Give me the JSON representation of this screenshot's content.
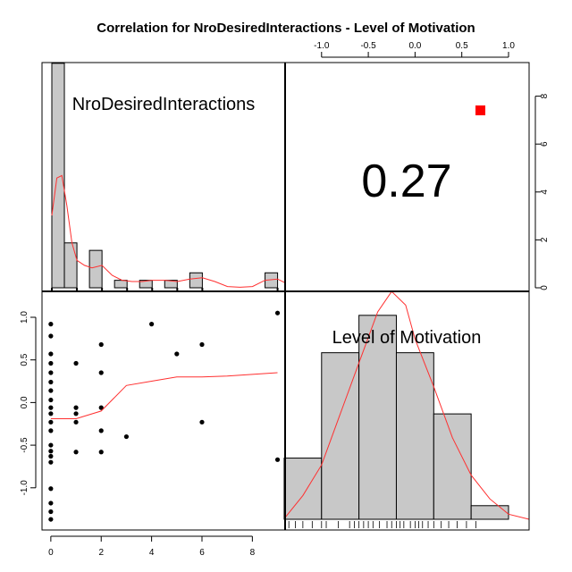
{
  "chart_data": {
    "type": "scatter",
    "title": "Correlation  for NroDesiredInteractions - Level of Motivation",
    "variables": [
      "NroDesiredInteractions",
      "Level of Motivation"
    ],
    "correlation_label": "0.27",
    "colors": {
      "bar_fill": "#c8c8c8",
      "density": "#ff3030",
      "marker": "#ff0000",
      "points": "#000000"
    },
    "hist_nro": {
      "xlim": [
        0,
        9.3
      ],
      "ylim": [
        0,
        8.6
      ],
      "bins": [
        {
          "x0": 0.0,
          "x1": 0.5,
          "h": 9.0
        },
        {
          "x0": 0.5,
          "x1": 1.0,
          "h": 1.8
        },
        {
          "x0": 1.0,
          "x1": 1.5,
          "h": 0.0
        },
        {
          "x0": 1.5,
          "x1": 2.0,
          "h": 1.5
        },
        {
          "x0": 2.0,
          "x1": 2.5,
          "h": 0.0
        },
        {
          "x0": 2.5,
          "x1": 3.0,
          "h": 0.3
        },
        {
          "x0": 3.0,
          "x1": 3.5,
          "h": 0.0
        },
        {
          "x0": 3.5,
          "x1": 4.0,
          "h": 0.3
        },
        {
          "x0": 4.0,
          "x1": 4.5,
          "h": 0.0
        },
        {
          "x0": 4.5,
          "x1": 5.0,
          "h": 0.3
        },
        {
          "x0": 5.0,
          "x1": 5.5,
          "h": 0.0
        },
        {
          "x0": 5.5,
          "x1": 6.0,
          "h": 0.6
        },
        {
          "x0": 6.0,
          "x1": 6.5,
          "h": 0.0
        },
        {
          "x0": 6.5,
          "x1": 7.0,
          "h": 0.0
        },
        {
          "x0": 7.0,
          "x1": 7.5,
          "h": 0.0
        },
        {
          "x0": 7.5,
          "x1": 8.0,
          "h": 0.0
        },
        {
          "x0": 8.0,
          "x1": 8.5,
          "h": 0.0
        },
        {
          "x0": 8.5,
          "x1": 9.0,
          "h": 0.6
        }
      ],
      "density": [
        [
          0.0,
          2.9
        ],
        [
          0.2,
          4.4
        ],
        [
          0.4,
          4.5
        ],
        [
          0.6,
          3.3
        ],
        [
          0.8,
          1.8
        ],
        [
          1.0,
          1.1
        ],
        [
          1.3,
          0.9
        ],
        [
          1.6,
          0.8
        ],
        [
          2.0,
          0.9
        ],
        [
          2.4,
          0.5
        ],
        [
          2.8,
          0.3
        ],
        [
          3.2,
          0.25
        ],
        [
          3.6,
          0.25
        ],
        [
          4.0,
          0.3
        ],
        [
          4.5,
          0.3
        ],
        [
          5.0,
          0.25
        ],
        [
          5.5,
          0.35
        ],
        [
          6.0,
          0.4
        ],
        [
          6.5,
          0.25
        ],
        [
          7.0,
          0.05
        ],
        [
          7.5,
          0.02
        ],
        [
          8.0,
          0.05
        ],
        [
          8.5,
          0.3
        ],
        [
          9.0,
          0.35
        ],
        [
          9.3,
          0.2
        ]
      ],
      "rug": [
        0,
        1,
        2,
        3,
        4,
        5,
        6,
        9
      ]
    },
    "hist_motivation": {
      "xlim": [
        -1.39,
        1.22
      ],
      "ylim": [
        0,
        6.6
      ],
      "bins": [
        {
          "x0": -1.4,
          "x1": -1.0,
          "h": 1.8
        },
        {
          "x0": -1.0,
          "x1": -0.6,
          "h": 4.9
        },
        {
          "x0": -0.6,
          "x1": -0.2,
          "h": 6.0
        },
        {
          "x0": -0.2,
          "x1": 0.2,
          "h": 4.9
        },
        {
          "x0": 0.2,
          "x1": 0.6,
          "h": 3.1
        },
        {
          "x0": 0.6,
          "x1": 1.0,
          "h": 0.4
        }
      ],
      "density": [
        [
          -1.39,
          0.05
        ],
        [
          -1.2,
          0.7
        ],
        [
          -1.0,
          1.6
        ],
        [
          -0.8,
          3.1
        ],
        [
          -0.6,
          4.6
        ],
        [
          -0.4,
          6.1
        ],
        [
          -0.25,
          6.7
        ],
        [
          -0.1,
          6.3
        ],
        [
          0.0,
          5.3
        ],
        [
          0.2,
          3.9
        ],
        [
          0.4,
          2.4
        ],
        [
          0.6,
          1.3
        ],
        [
          0.8,
          0.6
        ],
        [
          1.0,
          0.15
        ],
        [
          1.22,
          0.0
        ]
      ],
      "rug": [
        -1.35,
        -1.28,
        -1.2,
        -1.1,
        -1.0,
        -0.95,
        -0.82,
        -0.7,
        -0.65,
        -0.6,
        -0.55,
        -0.5,
        -0.45,
        -0.38,
        -0.3,
        -0.25,
        -0.2,
        -0.16,
        -0.12,
        -0.05,
        0.0,
        0.04,
        0.08,
        0.14,
        0.2,
        0.28,
        0.36,
        0.45,
        0.55,
        0.65
      ]
    },
    "scatter": {
      "xlabel": "NroDesiredInteractions",
      "ylabel": "Level of Motivation",
      "xlim": [
        -0.35,
        9.3
      ],
      "ylim": [
        -1.39,
        1.22
      ],
      "points": [
        [
          0,
          0.92
        ],
        [
          0,
          0.78
        ],
        [
          0,
          0.57
        ],
        [
          0,
          0.46
        ],
        [
          0,
          0.35
        ],
        [
          0,
          0.24
        ],
        [
          0,
          0.14
        ],
        [
          0,
          0.03
        ],
        [
          0,
          -0.06
        ],
        [
          0,
          -0.13
        ],
        [
          0,
          -0.23
        ],
        [
          0,
          -0.33
        ],
        [
          0,
          -0.5
        ],
        [
          0,
          -0.57
        ],
        [
          0,
          -0.63
        ],
        [
          0,
          -0.7
        ],
        [
          0,
          -1.01
        ],
        [
          0,
          -1.18
        ],
        [
          0,
          -1.28
        ],
        [
          0,
          -1.37
        ],
        [
          1,
          0.46
        ],
        [
          1,
          -0.06
        ],
        [
          1,
          -0.13
        ],
        [
          1,
          -0.23
        ],
        [
          1,
          -0.58
        ],
        [
          2,
          0.68
        ],
        [
          2,
          0.35
        ],
        [
          2,
          -0.06
        ],
        [
          2,
          -0.33
        ],
        [
          2,
          -0.58
        ],
        [
          3,
          -0.4
        ],
        [
          4,
          0.92
        ],
        [
          5,
          0.57
        ],
        [
          6,
          0.68
        ],
        [
          6,
          -0.23
        ],
        [
          9,
          1.05
        ],
        [
          9,
          -0.67
        ]
      ],
      "smoother": [
        [
          0,
          -0.19
        ],
        [
          1,
          -0.19
        ],
        [
          2,
          -0.1
        ],
        [
          3,
          0.2
        ],
        [
          4,
          0.25
        ],
        [
          5,
          0.3
        ],
        [
          6,
          0.3
        ],
        [
          7,
          0.31
        ],
        [
          8,
          0.33
        ],
        [
          9,
          0.35
        ]
      ]
    },
    "bottom_axis": {
      "ticks": [
        0,
        2,
        4,
        6,
        8
      ],
      "labels": [
        "0",
        "2",
        "4",
        "6",
        "8"
      ]
    },
    "top_axis": {
      "ticks": [
        -1.0,
        -0.5,
        0.0,
        0.5,
        1.0
      ],
      "labels": [
        "-1.0",
        "-0.5",
        "0.0",
        "0.5",
        "1.0"
      ]
    },
    "left_axis": {
      "ticks": [
        -1.0,
        -0.5,
        0.0,
        0.5,
        1.0
      ],
      "labels": [
        "-1.0",
        "-0.5",
        "0.0",
        "0.5",
        "1.0"
      ]
    },
    "right_axis": {
      "ticks": [
        0,
        2,
        4,
        6,
        8
      ],
      "labels": [
        "0",
        "2",
        "4",
        "6",
        "8"
      ]
    }
  }
}
